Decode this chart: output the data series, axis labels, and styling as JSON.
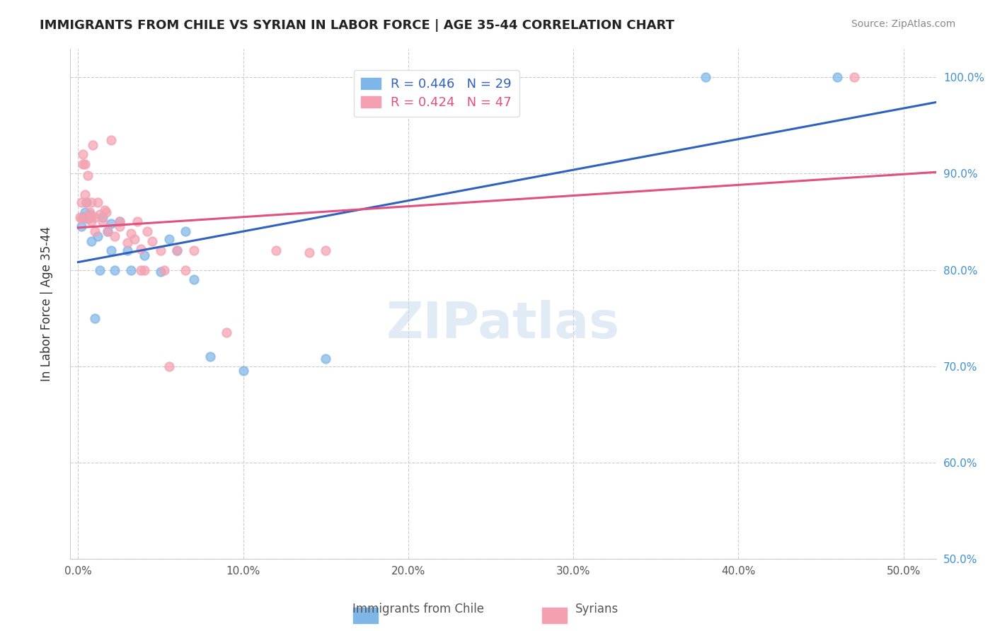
{
  "title": "IMMIGRANTS FROM CHILE VS SYRIAN IN LABOR FORCE | AGE 35-44 CORRELATION CHART",
  "source": "Source: ZipAtlas.com",
  "xlabel_ticks": [
    0.0,
    0.1,
    0.2,
    0.3,
    0.4,
    0.5
  ],
  "ylabel_ticks": [
    0.5,
    0.6,
    0.7,
    0.8,
    0.9,
    1.0
  ],
  "xlim": [
    -0.005,
    0.52
  ],
  "ylim": [
    0.5,
    1.03
  ],
  "chile_R": 0.446,
  "chile_N": 29,
  "syrian_R": 0.424,
  "syrian_N": 47,
  "chile_color": "#7EB6E8",
  "syrian_color": "#F4A0B0",
  "chile_line_color": "#3060C0",
  "syrian_line_color": "#E05080",
  "chile_x": [
    0.002,
    0.003,
    0.004,
    0.005,
    0.006,
    0.007,
    0.008,
    0.01,
    0.012,
    0.013,
    0.015,
    0.018,
    0.02,
    0.02,
    0.022,
    0.025,
    0.03,
    0.032,
    0.04,
    0.05,
    0.055,
    0.06,
    0.065,
    0.07,
    0.08,
    0.1,
    0.15,
    0.38,
    0.46
  ],
  "chile_y": [
    0.845,
    0.855,
    0.86,
    0.87,
    0.853,
    0.858,
    0.83,
    0.75,
    0.835,
    0.8,
    0.855,
    0.84,
    0.848,
    0.82,
    0.8,
    0.85,
    0.82,
    0.8,
    0.815,
    0.798,
    0.832,
    0.82,
    0.84,
    0.79,
    0.71,
    0.695,
    0.708,
    1.0,
    1.0
  ],
  "syrian_x": [
    0.001,
    0.002,
    0.002,
    0.003,
    0.003,
    0.004,
    0.004,
    0.005,
    0.005,
    0.006,
    0.007,
    0.008,
    0.008,
    0.008,
    0.009,
    0.01,
    0.01,
    0.012,
    0.013,
    0.015,
    0.016,
    0.017,
    0.018,
    0.02,
    0.022,
    0.025,
    0.025,
    0.03,
    0.032,
    0.034,
    0.036,
    0.038,
    0.038,
    0.04,
    0.042,
    0.045,
    0.05,
    0.052,
    0.055,
    0.06,
    0.065,
    0.07,
    0.09,
    0.12,
    0.14,
    0.15,
    0.47
  ],
  "syrian_y": [
    0.855,
    0.87,
    0.853,
    0.92,
    0.91,
    0.91,
    0.878,
    0.87,
    0.855,
    0.898,
    0.86,
    0.87,
    0.855,
    0.85,
    0.93,
    0.84,
    0.855,
    0.87,
    0.858,
    0.85,
    0.862,
    0.86,
    0.84,
    0.935,
    0.835,
    0.85,
    0.845,
    0.828,
    0.838,
    0.832,
    0.85,
    0.8,
    0.822,
    0.8,
    0.84,
    0.83,
    0.82,
    0.8,
    0.7,
    0.82,
    0.8,
    0.82,
    0.735,
    0.82,
    0.818,
    0.82,
    1.0
  ],
  "watermark": "ZIPatlas",
  "legend_label_chile": "Immigrants from Chile",
  "legend_label_syrian": "Syrians",
  "ylabel": "In Labor Force | Age 35-44",
  "marker_size": 80,
  "marker_linewidth": 1.5
}
